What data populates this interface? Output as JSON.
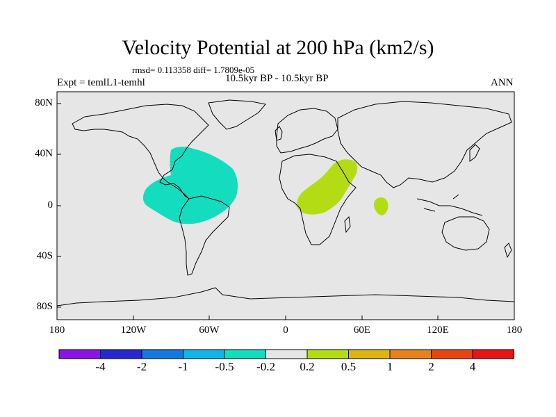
{
  "title": "Velocity Potential at 200 hPa (km2/s)",
  "subtitle": {
    "stats": "rmsd= 0.113358 diff= 1.7809e-05",
    "experiment": "Expt = temlL1-temhl",
    "period": "10.5kyr BP - 10.5kyr BP",
    "season": "ANN"
  },
  "map": {
    "background_color": "#e6e6e6",
    "lat_labels": [
      "80N",
      "40N",
      "0",
      "40S",
      "80S"
    ],
    "lon_labels": [
      "180",
      "120W",
      "60W",
      "0",
      "60E",
      "120E",
      "180"
    ]
  },
  "colorbar": {
    "colors": [
      "#8a14e6",
      "#2828d2",
      "#1478dc",
      "#14b4e6",
      "#14dcbe",
      "#e6e6e6",
      "#b4dc14",
      "#dcb414",
      "#e6821e",
      "#e64614",
      "#e61414"
    ],
    "labels": [
      "-4",
      "-2",
      "-1",
      "-0.5",
      "-0.2",
      "0.2",
      "0.5",
      "1",
      "2",
      "4"
    ]
  },
  "regions": [
    {
      "name": "Tropical Americas / Atlantic",
      "level": "-0.5 to -0.2",
      "color": "#14dcbe"
    },
    {
      "name": "East Africa / Arabia",
      "level": "0.2 to 0.5",
      "color": "#b4dc14"
    },
    {
      "name": "Indian Ocean (south of India)",
      "level": "0.2 to 0.5",
      "color": "#b4dc14"
    }
  ]
}
